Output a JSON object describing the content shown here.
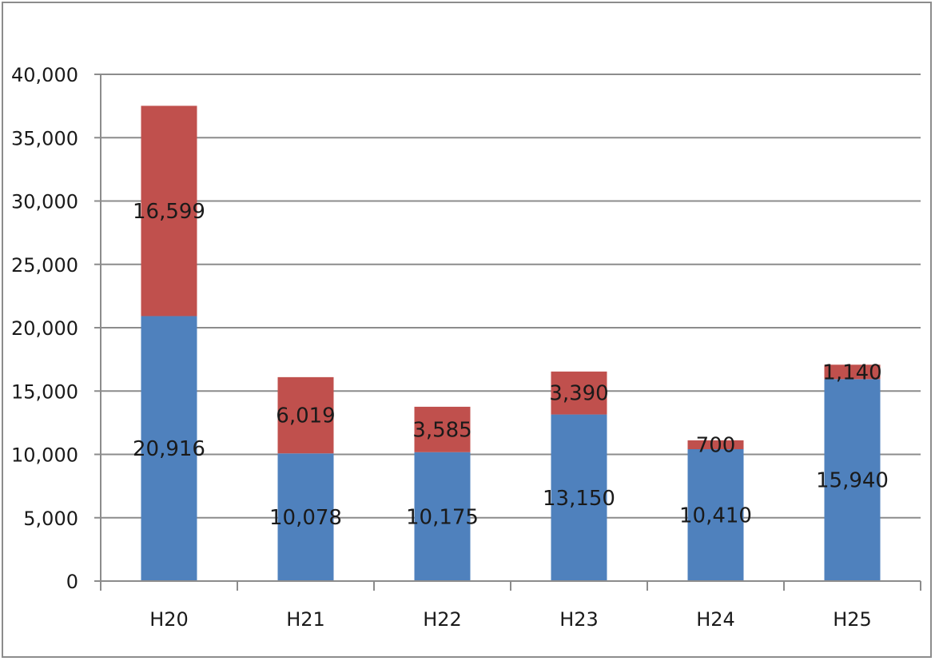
{
  "chart_data": {
    "type": "bar",
    "stacked": true,
    "categories": [
      "H20",
      "H21",
      "H22",
      "H23",
      "H24",
      "H25"
    ],
    "series": [
      {
        "values": [
          20916,
          10078,
          10175,
          13150,
          10410,
          15940
        ],
        "color": "#4f81bd"
      },
      {
        "values": [
          16599,
          6019,
          3585,
          3390,
          700,
          1140
        ],
        "color": "#c0504d"
      }
    ],
    "data_labels": {
      "bottom": [
        "20,916",
        "10,078",
        "10,175",
        "13,150",
        "10,410",
        "15,940"
      ],
      "top": [
        "16,599",
        "6,019",
        "3,585",
        "3,390",
        "700",
        "1,140"
      ]
    },
    "y_ticks": [
      "0",
      "5,000",
      "10,000",
      "15,000",
      "20,000",
      "25,000",
      "30,000",
      "35,000",
      "40,000"
    ],
    "ylim": [
      0,
      40000
    ],
    "grid": true,
    "legend": "none"
  }
}
